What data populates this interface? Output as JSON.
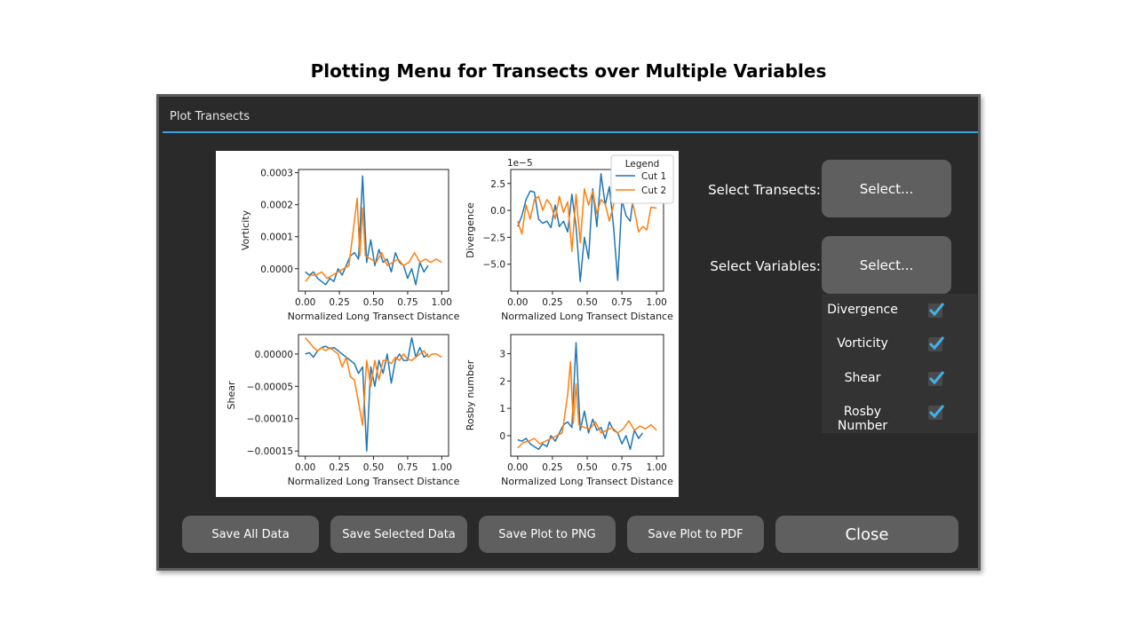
{
  "caption": "Plotting Menu for Transects over Multiple Variables",
  "window": {
    "title": "Plot Transects",
    "accent_color": "#33a6e0"
  },
  "controls": {
    "select_transects_label": "Select Transects:",
    "select_transects_button": "Select...",
    "select_variables_label": "Select Variables:",
    "select_variables_button": "Select..."
  },
  "variables": [
    {
      "label": "Divergence",
      "checked": true
    },
    {
      "label": "Vorticity",
      "checked": true
    },
    {
      "label": "Shear",
      "checked": true
    },
    {
      "label": "Rosby Number",
      "checked": true
    }
  ],
  "buttons": {
    "save_all": "Save All Data",
    "save_selected": "Save Selected Data",
    "save_png": "Save Plot to PNG",
    "save_pdf": "Save Plot to PDF",
    "close": "Close"
  },
  "chart_data": {
    "type": "line",
    "series_colors": [
      "#1f77b4",
      "#ff7f0e"
    ],
    "legend": {
      "title": "Legend",
      "entries": [
        "Cut 1",
        "Cut 2"
      ],
      "placement": "top-right of divergence panel"
    },
    "panels": [
      {
        "id": "vorticity",
        "xlabel": "Normalized Long Transect Distance",
        "ylabel": "Vorticity",
        "ylim": [
          -7e-05,
          0.00031
        ],
        "yticks": [
          0,
          0.0001,
          0.0002,
          0.0003
        ],
        "yticklabels": [
          "0.0000",
          "0.0001",
          "0.0002",
          "0.0003"
        ],
        "xticks": [
          "0.00",
          "0.25",
          "0.50",
          "0.75",
          "1.00"
        ],
        "offset_label": "",
        "series": [
          {
            "x": [
              0,
              0.03,
              0.06,
              0.09,
              0.12,
              0.15,
              0.18,
              0.21,
              0.24,
              0.27,
              0.3,
              0.33,
              0.36,
              0.39,
              0.42,
              0.45,
              0.48,
              0.51,
              0.54,
              0.57,
              0.6,
              0.63,
              0.66,
              0.69,
              0.72,
              0.75,
              0.78,
              0.81,
              0.84,
              0.87,
              0.9
            ],
            "y": [
              -1e-05,
              -2e-05,
              -1e-05,
              -3e-05,
              -4e-05,
              -5e-05,
              -3e-05,
              -4e-05,
              0,
              -2e-05,
              1e-05,
              4e-05,
              5e-05,
              3e-05,
              0.00029,
              2e-05,
              9e-05,
              1e-05,
              6e-05,
              2e-05,
              3e-05,
              -1e-05,
              5e-05,
              2e-05,
              1e-05,
              -3e-05,
              0,
              -5e-05,
              2e-05,
              -1e-05,
              1e-05
            ]
          },
          {
            "x": [
              0,
              0.04,
              0.08,
              0.12,
              0.16,
              0.2,
              0.24,
              0.28,
              0.32,
              0.36,
              0.38,
              0.4,
              0.42,
              0.44,
              0.48,
              0.52,
              0.56,
              0.6,
              0.64,
              0.68,
              0.72,
              0.76,
              0.8,
              0.84,
              0.88,
              0.92,
              0.96,
              1.0
            ],
            "y": [
              -4e-05,
              -2e-05,
              -2e-05,
              -1e-05,
              -3e-05,
              -2e-05,
              -1e-05,
              0,
              1e-05,
              0.00015,
              0.00022,
              4e-05,
              0.00019,
              4e-05,
              3e-05,
              2e-05,
              5e-05,
              1e-05,
              2e-05,
              3e-05,
              1e-05,
              2e-05,
              5e-05,
              2e-05,
              3e-05,
              2e-05,
              3e-05,
              2e-05
            ]
          }
        ]
      },
      {
        "id": "divergence",
        "xlabel": "Normalized Long Transect Distance",
        "ylabel": "Divergence",
        "ylim": [
          -7.5,
          3.8
        ],
        "yticks": [
          -5,
          -2.5,
          0,
          2.5
        ],
        "yticklabels": [
          "−5.0",
          "−2.5",
          "0.0",
          "2.5"
        ],
        "xticks": [
          "0.00",
          "0.25",
          "0.50",
          "0.75",
          "1.00"
        ],
        "offset_label": "1e−5",
        "series": [
          {
            "x": [
              0,
              0.03,
              0.06,
              0.09,
              0.12,
              0.15,
              0.18,
              0.21,
              0.24,
              0.27,
              0.3,
              0.33,
              0.36,
              0.39,
              0.42,
              0.45,
              0.48,
              0.51,
              0.54,
              0.57,
              0.6,
              0.63,
              0.66,
              0.69,
              0.72,
              0.75,
              0.78,
              0.81,
              0.84
            ],
            "y": [
              -1.5,
              -0.5,
              1.0,
              1.8,
              1.7,
              -0.8,
              -1.2,
              -1.0,
              -1.6,
              0.5,
              -1.5,
              -1.0,
              -2.0,
              1.5,
              -1.5,
              -6.6,
              -2.5,
              -4.5,
              2.0,
              -1.5,
              3.4,
              0.5,
              2.2,
              -1.5,
              -6.5,
              1.0,
              -0.5,
              -1.0,
              2.0
            ]
          },
          {
            "x": [
              0,
              0.03,
              0.06,
              0.09,
              0.12,
              0.15,
              0.18,
              0.21,
              0.24,
              0.27,
              0.3,
              0.33,
              0.36,
              0.39,
              0.42,
              0.45,
              0.48,
              0.51,
              0.54,
              0.57,
              0.6,
              0.63,
              0.66,
              0.69,
              0.72,
              0.75,
              0.78,
              0.81,
              0.84,
              0.87,
              0.9,
              0.93,
              0.96,
              1.0
            ],
            "y": [
              -1.0,
              -2.2,
              0.5,
              -0.8,
              1.0,
              1.3,
              0,
              1.0,
              0.5,
              -0.8,
              1.3,
              -0.2,
              0.8,
              -3.8,
              1.5,
              -3.0,
              2.0,
              0.5,
              1.8,
              -0.3,
              1.0,
              0.6,
              -1.0,
              0.5,
              2.5,
              0.8,
              2.2,
              1.5,
              0,
              -2.0,
              -1.5,
              -1.8,
              0.3,
              0.2
            ]
          }
        ]
      },
      {
        "id": "shear",
        "xlabel": "Normalized Long Transect Distance",
        "ylabel": "Shear",
        "ylim": [
          -0.000158,
          3e-05
        ],
        "yticks": [
          0,
          -5e-05,
          -0.0001,
          -0.00015
        ],
        "yticklabels": [
          "0.00000",
          "−0.00005",
          "−0.00010",
          "−0.00015"
        ],
        "xticks": [
          "0.00",
          "0.25",
          "0.50",
          "0.75",
          "1.00"
        ],
        "offset_label": "",
        "series": [
          {
            "x": [
              0,
              0.03,
              0.06,
              0.09,
              0.12,
              0.15,
              0.18,
              0.21,
              0.24,
              0.27,
              0.3,
              0.33,
              0.36,
              0.39,
              0.42,
              0.45,
              0.48,
              0.51,
              0.54,
              0.57,
              0.6,
              0.63,
              0.66,
              0.69,
              0.72,
              0.75,
              0.78,
              0.81,
              0.84,
              0.87,
              0.9
            ],
            "y": [
              0,
              2e-06,
              -5e-06,
              5e-06,
              1e-05,
              1.2e-05,
              8e-06,
              1e-05,
              5e-06,
              0,
              -5e-06,
              -1e-05,
              -1.5e-05,
              -3e-05,
              -2e-05,
              -0.00015,
              -2e-05,
              -5e-05,
              -1e-05,
              -3e-05,
              0,
              -4.5e-05,
              -1e-05,
              0,
              -1e-05,
              -1e-05,
              2.5e-05,
              -5e-06,
              1e-05,
              -5e-06,
              0
            ]
          },
          {
            "x": [
              0,
              0.03,
              0.06,
              0.09,
              0.12,
              0.15,
              0.18,
              0.21,
              0.24,
              0.27,
              0.3,
              0.33,
              0.36,
              0.39,
              0.42,
              0.45,
              0.48,
              0.51,
              0.54,
              0.57,
              0.6,
              0.63,
              0.66,
              0.69,
              0.72,
              0.75,
              0.78,
              0.81,
              0.84,
              0.87,
              0.9,
              0.93,
              0.96,
              1.0
            ],
            "y": [
              2.5e-05,
              1.8e-05,
              1e-05,
              5e-06,
              1e-05,
              5e-06,
              1e-05,
              5e-06,
              0,
              -2e-05,
              -5e-06,
              -3.5e-05,
              -4e-05,
              -7.5e-05,
              -0.00011,
              -1e-05,
              -5e-05,
              -1e-05,
              -4e-05,
              -1e-05,
              -1e-05,
              -1.5e-05,
              -5e-06,
              -1e-05,
              0,
              -8e-06,
              -1e-05,
              -5e-06,
              0,
              5e-06,
              -5e-06,
              0,
              0,
              -5e-06
            ]
          }
        ]
      },
      {
        "id": "rosby",
        "xlabel": "Normalized Long Transect Distance",
        "ylabel": "Rosby number",
        "ylim": [
          -0.75,
          3.7
        ],
        "yticks": [
          0,
          1,
          2,
          3
        ],
        "yticklabels": [
          "0",
          "1",
          "2",
          "3"
        ],
        "xticks": [
          "0.00",
          "0.25",
          "0.50",
          "0.75",
          "1.00"
        ],
        "offset_label": "",
        "series": [
          {
            "x": [
              0,
              0.03,
              0.06,
              0.09,
              0.12,
              0.15,
              0.18,
              0.21,
              0.24,
              0.27,
              0.3,
              0.33,
              0.36,
              0.39,
              0.42,
              0.45,
              0.48,
              0.51,
              0.54,
              0.57,
              0.6,
              0.63,
              0.66,
              0.69,
              0.72,
              0.75,
              0.78,
              0.81,
              0.84,
              0.87,
              0.9
            ],
            "y": [
              -0.15,
              -0.2,
              -0.1,
              -0.3,
              -0.4,
              -0.5,
              -0.3,
              -0.4,
              0,
              -0.2,
              0.1,
              0.4,
              0.5,
              0.3,
              3.4,
              0.2,
              0.9,
              0.1,
              0.6,
              0.2,
              0.3,
              -0.1,
              0.5,
              0.2,
              0.1,
              -0.3,
              0,
              -0.5,
              0.2,
              -0.1,
              0.1
            ]
          },
          {
            "x": [
              0,
              0.04,
              0.08,
              0.12,
              0.16,
              0.2,
              0.24,
              0.28,
              0.32,
              0.36,
              0.38,
              0.4,
              0.42,
              0.44,
              0.48,
              0.52,
              0.56,
              0.6,
              0.64,
              0.68,
              0.72,
              0.76,
              0.8,
              0.84,
              0.88,
              0.92,
              0.96,
              1.0
            ],
            "y": [
              -0.45,
              -0.25,
              -0.2,
              -0.1,
              -0.3,
              -0.2,
              -0.1,
              0,
              0.1,
              1.5,
              2.7,
              0.45,
              1.9,
              0.4,
              0.3,
              0.25,
              0.5,
              0.1,
              0.2,
              0.3,
              0.1,
              0.25,
              0.55,
              0.2,
              0.35,
              0.25,
              0.4,
              0.2
            ]
          }
        ]
      }
    ]
  }
}
